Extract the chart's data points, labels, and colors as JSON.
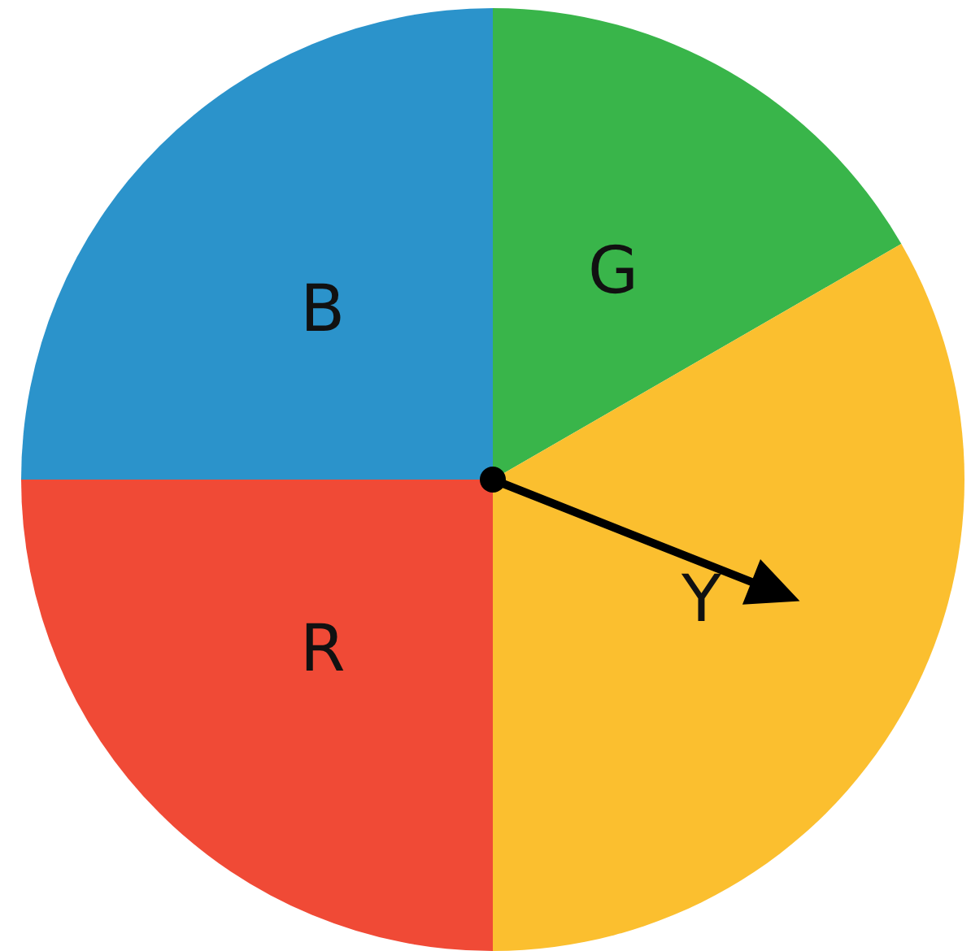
{
  "chart_data": {
    "type": "pie",
    "categories": [
      "G",
      "Y",
      "R",
      "B"
    ],
    "values": [
      16.67,
      33.33,
      25,
      25
    ],
    "colors": [
      "#39b54a",
      "#fbbf2f",
      "#f04a36",
      "#2b93cb"
    ],
    "needle": "Y"
  }
}
